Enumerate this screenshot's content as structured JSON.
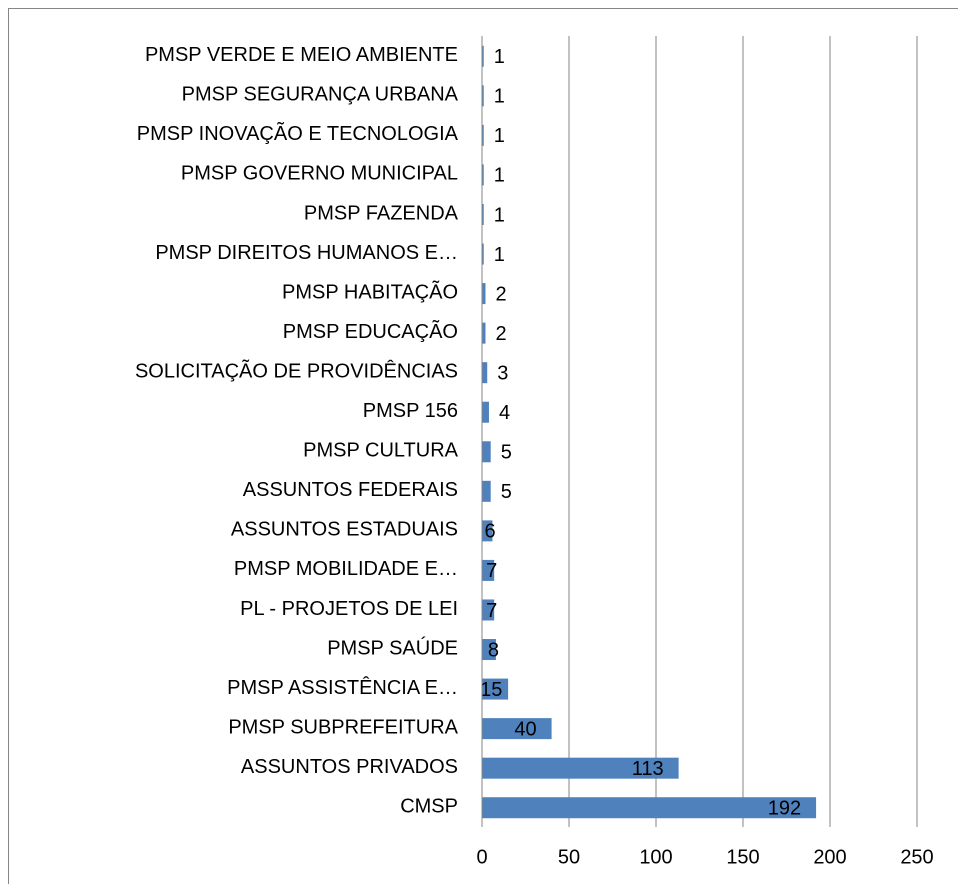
{
  "chart_data": {
    "type": "bar",
    "orientation": "horizontal",
    "categories": [
      "PMSP VERDE E MEIO AMBIENTE",
      "PMSP SEGURANÇA URBANA",
      "PMSP INOVAÇÃO E TECNOLOGIA",
      "PMSP GOVERNO MUNICIPAL",
      "PMSP FAZENDA",
      "PMSP DIREITOS HUMANOS E…",
      "PMSP HABITAÇÃO",
      "PMSP EDUCAÇÃO",
      "SOLICITAÇÃO DE PROVIDÊNCIAS",
      "PMSP 156",
      "PMSP CULTURA",
      "ASSUNTOS FEDERAIS",
      "ASSUNTOS ESTADUAIS",
      "PMSP MOBILIDADE E…",
      "PL - PROJETOS DE LEI",
      "PMSP SAÚDE",
      "PMSP ASSISTÊNCIA E…",
      "PMSP SUBPREFEITURA",
      "ASSUNTOS PRIVADOS",
      "CMSP"
    ],
    "values": [
      1,
      1,
      1,
      1,
      1,
      1,
      2,
      2,
      3,
      4,
      5,
      5,
      6,
      7,
      7,
      8,
      15,
      40,
      113,
      192
    ],
    "color": "#4f81bd",
    "xlim": [
      0,
      250
    ],
    "xticks": [
      0,
      50,
      100,
      150,
      200,
      250
    ],
    "grid": true
  }
}
